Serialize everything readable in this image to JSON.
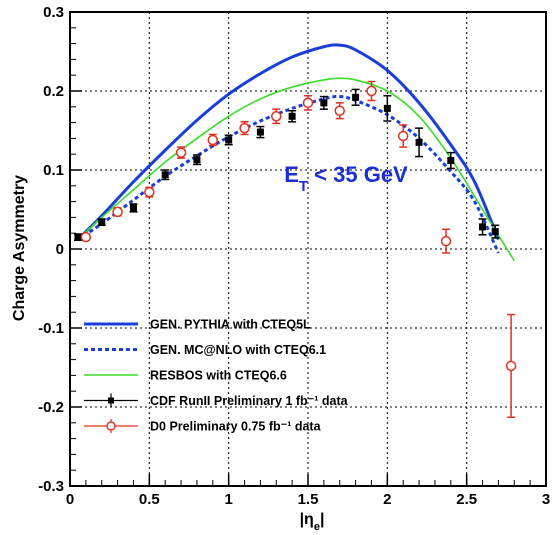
{
  "chart_data": {
    "type": "line",
    "xlabel": "|η",
    "xlabel_sub": "e",
    "ylabel": "Charge Asymmetry",
    "xlim": [
      0,
      3
    ],
    "ylim": [
      -0.3,
      0.3
    ],
    "x_ticks": [
      0,
      0.5,
      1,
      1.5,
      2,
      2.5,
      3
    ],
    "x_tick_labels": [
      "0",
      "0.5",
      "1",
      "1.5",
      "2",
      "2.5",
      "3"
    ],
    "y_ticks": [
      -0.3,
      -0.2,
      -0.1,
      0,
      0.1,
      0.2,
      0.3
    ],
    "y_tick_labels": [
      "-0.3",
      "-0.2",
      "-0.1",
      "0",
      "0.1",
      "0.2",
      "0.3"
    ],
    "grid": true,
    "legend_position": "bottom-left",
    "annotation": {
      "text_main": "E",
      "text_sub": "T",
      "text_rest": " < 35 GeV",
      "x": 1.35,
      "y": 0.085
    },
    "series": [
      {
        "name": "GEN. PYTHIA with CTEQ5L",
        "kind": "curve",
        "color": "#1a3fd6",
        "style": "solid",
        "width": 3,
        "x": [
          0.05,
          0.2,
          0.4,
          0.6,
          0.8,
          1.0,
          1.2,
          1.4,
          1.6,
          1.7,
          1.8,
          2.0,
          2.2,
          2.4,
          2.55,
          2.7
        ],
        "y": [
          0.012,
          0.042,
          0.085,
          0.125,
          0.163,
          0.196,
          0.222,
          0.243,
          0.256,
          0.258,
          0.252,
          0.226,
          0.185,
          0.132,
          0.085,
          0.012
        ]
      },
      {
        "name": "GEN. MC@NLO with CTEQ6.1",
        "kind": "curve",
        "color": "#1a3fd6",
        "style": "dashed",
        "width": 3,
        "x": [
          0.05,
          0.2,
          0.4,
          0.6,
          0.8,
          1.0,
          1.2,
          1.4,
          1.6,
          1.7,
          1.8,
          2.0,
          2.2,
          2.4,
          2.55,
          2.7
        ],
        "y": [
          0.012,
          0.032,
          0.062,
          0.092,
          0.118,
          0.142,
          0.162,
          0.178,
          0.19,
          0.193,
          0.188,
          0.17,
          0.14,
          0.098,
          0.06,
          -0.005
        ]
      },
      {
        "name": "RESBOS with CTEQ6.6",
        "kind": "curve",
        "color": "#3ddc2a",
        "style": "solid",
        "width": 1.6,
        "x": [
          0.05,
          0.2,
          0.4,
          0.6,
          0.8,
          1.0,
          1.2,
          1.4,
          1.6,
          1.7,
          1.8,
          2.0,
          2.2,
          2.4,
          2.6,
          2.8
        ],
        "y": [
          0.012,
          0.04,
          0.075,
          0.11,
          0.14,
          0.168,
          0.19,
          0.205,
          0.214,
          0.216,
          0.214,
          0.2,
          0.168,
          0.115,
          0.05,
          -0.015
        ]
      },
      {
        "name": "CDF RunII Preliminary 1 fb⁻¹ data",
        "kind": "points",
        "color": "#000000",
        "marker": "filled-square",
        "x": [
          0.05,
          0.2,
          0.4,
          0.6,
          0.8,
          1.0,
          1.2,
          1.4,
          1.6,
          1.8,
          2.0,
          2.2,
          2.4,
          2.6,
          2.68
        ],
        "y": [
          0.015,
          0.034,
          0.052,
          0.094,
          0.113,
          0.138,
          0.148,
          0.168,
          0.185,
          0.192,
          0.178,
          0.135,
          0.112,
          0.028,
          0.022
        ],
        "err": [
          0.004,
          0.004,
          0.005,
          0.006,
          0.006,
          0.006,
          0.007,
          0.007,
          0.008,
          0.01,
          0.016,
          0.018,
          0.01,
          0.01,
          0.008
        ]
      },
      {
        "name": "D0 Preliminary 0.75 fb⁻¹ data",
        "kind": "points",
        "color": "#e33020",
        "marker": "open-circle",
        "x": [
          0.1,
          0.3,
          0.5,
          0.7,
          0.9,
          1.1,
          1.3,
          1.5,
          1.7,
          1.9,
          2.1,
          2.37,
          2.78
        ],
        "y": [
          0.015,
          0.047,
          0.072,
          0.122,
          0.138,
          0.153,
          0.168,
          0.185,
          0.175,
          0.2,
          0.143,
          0.01,
          -0.148
        ],
        "err": [
          0.004,
          0.005,
          0.006,
          0.007,
          0.007,
          0.008,
          0.009,
          0.009,
          0.01,
          0.012,
          0.014,
          0.015,
          0.065
        ]
      }
    ]
  }
}
